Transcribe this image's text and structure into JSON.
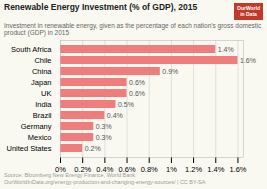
{
  "chart_data": {
    "type": "bar",
    "orientation": "horizontal",
    "title": "Renewable Energy Investment (% of GDP), 2015",
    "subtitle": "Investment in renewable energy, given as the percentage of each nation's gross domestic product (GDP) in 2015",
    "annotations": [
      "OurWorld",
      "in Data",
      "Source: Bloomberg New Energy Finance, World Bank",
      "OurWorldInData.org/energy-production-and-changing-energy-sources/ | CC BY-SA"
    ],
    "categories": [
      "South Africa",
      "Chile",
      "China",
      "Japan",
      "UK",
      "India",
      "Brazil",
      "Germany",
      "Mexico",
      "United States"
    ],
    "values": [
      1.4,
      1.6,
      0.9,
      0.6,
      0.6,
      0.5,
      0.4,
      0.3,
      0.3,
      0.2
    ],
    "value_labels": [
      "1.4%",
      "1.6%",
      "0.9%",
      "0.6%",
      "0.6%",
      "0.5%",
      "0.4%",
      "0.3%",
      "0.3%",
      "0.2%"
    ],
    "color": "#f07c7c",
    "xlim": [
      0,
      1.65
    ],
    "xticks": [
      {
        "value": 0,
        "label": "0%"
      },
      {
        "value": 0.2,
        "label": "0.2%"
      },
      {
        "value": 0.4,
        "label": "0.4%"
      },
      {
        "value": 0.6,
        "label": "0.6%"
      },
      {
        "value": 0.8,
        "label": "0.8%"
      },
      {
        "value": 1.0,
        "label": "1%"
      },
      {
        "value": 1.2,
        "label": "1.2%"
      },
      {
        "value": 1.4,
        "label": "1.4%"
      },
      {
        "value": 1.6,
        "label": "1.6%"
      }
    ],
    "grid": true,
    "data_labels": true
  }
}
